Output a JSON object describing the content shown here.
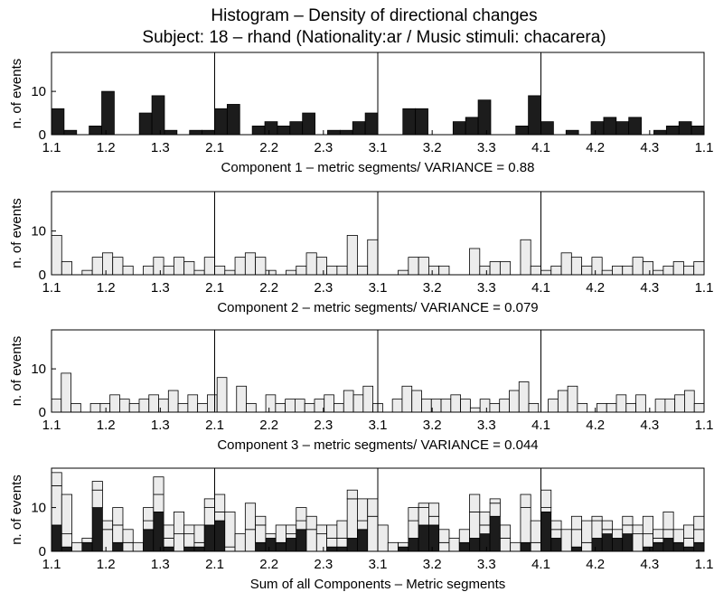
{
  "title": "Histogram – Density of directional changes",
  "subtitle": "Subject: 18 – rhand (Nationality:ar / Music stimuli: chacarera)",
  "colors": {
    "dark": "#1c1c1c",
    "light": "#ececec",
    "stroke": "#000000"
  },
  "chart_data": [
    {
      "type": "bar",
      "title": "",
      "xlabel": "Component 1 – metric segments/ VARIANCE = 0.88",
      "ylabel": "n. of events",
      "ylim": [
        0,
        19
      ],
      "yticks": [
        0,
        10
      ],
      "xticks": [
        "1.1",
        "1.2",
        "1.3",
        "2.1",
        "2.2",
        "2.3",
        "3.1",
        "3.2",
        "3.3",
        "4.1",
        "4.2",
        "4.3",
        "1.1"
      ],
      "color": "dark",
      "values": [
        6,
        1,
        0,
        2,
        10,
        0,
        0,
        5,
        9,
        1,
        0,
        1,
        1,
        6,
        7,
        0,
        2,
        3,
        2,
        3,
        5,
        0,
        1,
        1,
        3,
        5,
        0,
        0,
        6,
        6,
        0,
        0,
        3,
        4,
        8,
        0,
        0,
        2,
        9,
        3,
        0,
        1,
        0,
        3,
        4,
        3,
        4,
        0,
        1,
        2,
        3,
        2
      ]
    },
    {
      "type": "bar",
      "title": "",
      "xlabel": "Component 2 – metric segments/ VARIANCE = 0.079",
      "ylabel": "n. of events",
      "ylim": [
        0,
        19
      ],
      "yticks": [
        0,
        10
      ],
      "xticks": [
        "1.1",
        "1.2",
        "1.3",
        "2.1",
        "2.2",
        "2.3",
        "3.1",
        "3.2",
        "3.3",
        "4.1",
        "4.2",
        "4.3",
        "1.1"
      ],
      "color": "light",
      "values": [
        9,
        3,
        0,
        1,
        4,
        5,
        4,
        2,
        0,
        2,
        4,
        2,
        4,
        3,
        1,
        4,
        2,
        1,
        4,
        5,
        4,
        1,
        0,
        1,
        2,
        5,
        4,
        2,
        2,
        9,
        2,
        8,
        0,
        0,
        1,
        4,
        4,
        2,
        2,
        0,
        0,
        6,
        2,
        3,
        3,
        0,
        8,
        2,
        1,
        2,
        5,
        4,
        2,
        4,
        1,
        2,
        2,
        4,
        3,
        1,
        2,
        3,
        2,
        3
      ]
    },
    {
      "type": "bar",
      "title": "",
      "xlabel": "Component 3 – metric segments/ VARIANCE = 0.044",
      "ylabel": "n. of events",
      "ylim": [
        0,
        19
      ],
      "yticks": [
        0,
        10
      ],
      "xticks": [
        "1.1",
        "1.2",
        "1.3",
        "2.1",
        "2.2",
        "2.3",
        "3.1",
        "3.2",
        "3.3",
        "4.1",
        "4.2",
        "4.3",
        "1.1"
      ],
      "color": "light",
      "values": [
        3,
        9,
        2,
        0,
        2,
        2,
        4,
        3,
        2,
        3,
        4,
        3,
        5,
        2,
        4,
        2,
        4,
        8,
        0,
        6,
        2,
        0,
        4,
        2,
        3,
        3,
        2,
        3,
        4,
        2,
        5,
        4,
        6,
        2,
        0,
        3,
        6,
        5,
        3,
        3,
        3,
        4,
        3,
        1,
        3,
        2,
        3,
        5,
        7,
        2,
        0,
        3,
        5,
        6,
        2,
        0,
        2,
        2,
        4,
        2,
        4,
        0,
        3,
        3,
        4,
        5,
        2
      ]
    },
    {
      "type": "bar",
      "stacked": true,
      "title": "",
      "xlabel": "Sum of all Components – Metric segments",
      "ylabel": "n. of events",
      "ylim": [
        0,
        19
      ],
      "yticks": [
        0,
        10
      ],
      "xticks": [
        "1.1",
        "1.2",
        "1.3",
        "2.1",
        "2.2",
        "2.3",
        "3.1",
        "3.2",
        "3.3",
        "4.1",
        "4.2",
        "4.3",
        "1.1"
      ],
      "series": [
        {
          "color": "dark",
          "values": [
            6,
            1,
            0,
            2,
            10,
            0,
            2,
            0,
            0,
            5,
            9,
            1,
            0,
            1,
            1,
            6,
            7,
            0,
            0,
            0,
            2,
            3,
            2,
            3,
            5,
            0,
            0,
            1,
            1,
            3,
            5,
            0,
            0,
            0,
            1,
            3,
            6,
            6,
            0,
            0,
            2,
            3,
            4,
            8,
            0,
            0,
            2,
            0,
            9,
            3,
            0,
            1,
            0,
            3,
            4,
            3,
            4,
            0,
            1,
            2,
            3,
            2,
            1,
            2
          ]
        },
        {
          "color": "light",
          "values": [
            9,
            3,
            0,
            1,
            4,
            5,
            4,
            2,
            0,
            2,
            4,
            2,
            4,
            3,
            1,
            4,
            2,
            1,
            4,
            5,
            4,
            1,
            0,
            1,
            2,
            5,
            4,
            2,
            2,
            9,
            2,
            8,
            0,
            0,
            1,
            4,
            4,
            2,
            2,
            0,
            0,
            6,
            2,
            3,
            3,
            0,
            8,
            2,
            1,
            2,
            5,
            4,
            2,
            4,
            1,
            2,
            2,
            4,
            3,
            1,
            2,
            3,
            2,
            3
          ]
        },
        {
          "color": "light",
          "values": [
            3,
            9,
            2,
            0,
            2,
            2,
            4,
            3,
            2,
            3,
            4,
            3,
            5,
            2,
            4,
            2,
            4,
            8,
            0,
            6,
            2,
            0,
            4,
            2,
            3,
            3,
            2,
            3,
            4,
            2,
            5,
            4,
            6,
            2,
            0,
            3,
            1,
            3,
            3,
            3,
            3,
            4,
            3,
            1,
            3,
            2,
            3,
            5,
            4,
            2,
            0,
            3,
            5,
            1,
            2,
            0,
            2,
            2,
            4,
            2,
            4,
            0,
            3,
            3
          ]
        }
      ]
    }
  ]
}
